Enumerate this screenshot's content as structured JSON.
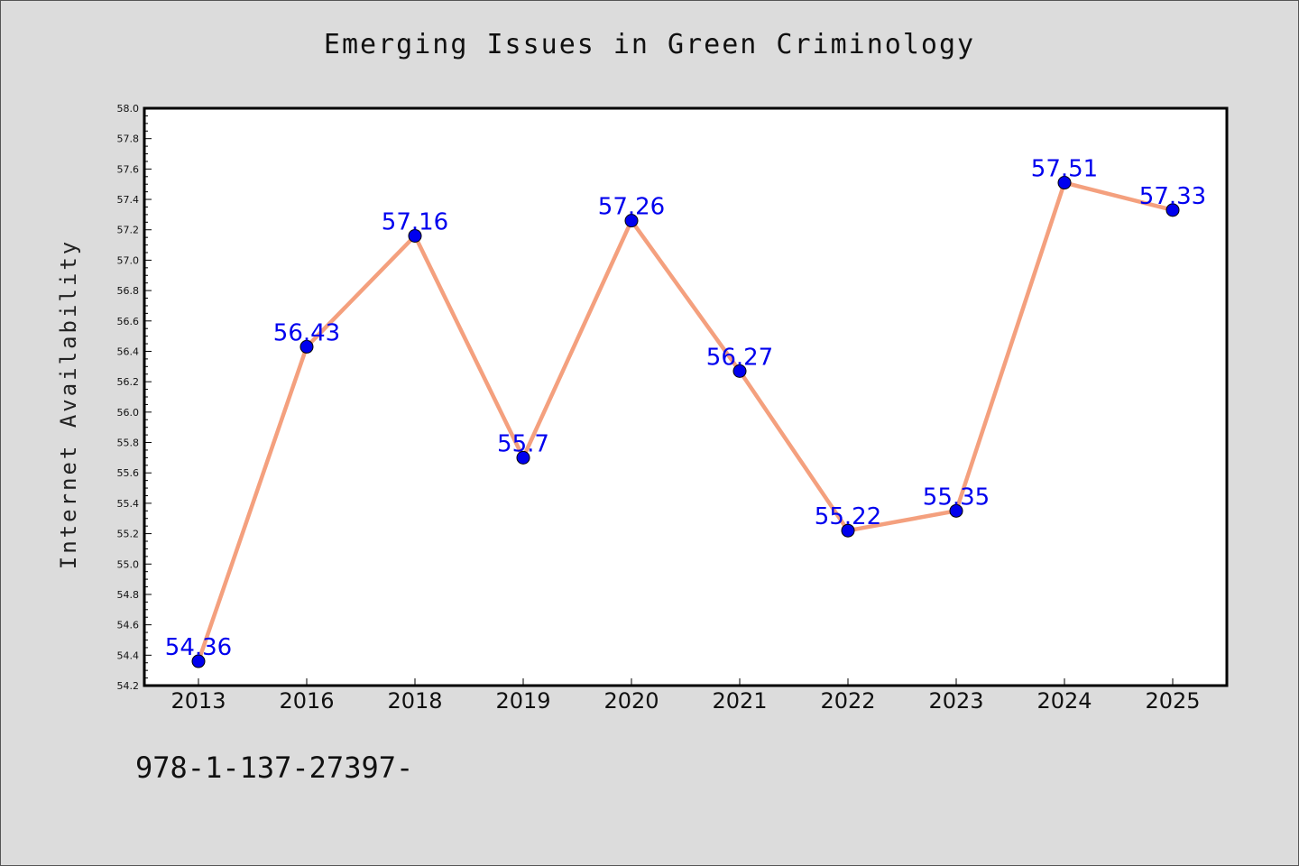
{
  "chart_data": {
    "type": "line",
    "title": "Emerging Issues in Green Criminology",
    "xlabel": "",
    "ylabel": "Internet Availability",
    "categories": [
      "2013",
      "2016",
      "2018",
      "2019",
      "2020",
      "2021",
      "2022",
      "2023",
      "2024",
      "2025"
    ],
    "values": [
      54.36,
      56.43,
      57.16,
      55.7,
      57.26,
      56.27,
      55.22,
      55.35,
      57.51,
      57.33
    ],
    "data_labels": [
      "54.36",
      "56.43",
      "57.16",
      "55.7",
      "57.26",
      "56.27",
      "55.22",
      "55.35",
      "57.51",
      "57.33"
    ],
    "ylim": [
      54.2,
      58.0
    ],
    "y_ticks": [
      "54.2",
      "54.4",
      "54.6",
      "54.8",
      "55.0",
      "55.2",
      "55.4",
      "55.6",
      "55.8",
      "56.0",
      "56.2",
      "56.4",
      "56.6",
      "56.8",
      "57.0",
      "57.2",
      "57.4",
      "57.6",
      "57.8",
      "58.0"
    ],
    "grid": false,
    "legend": "none",
    "colors": {
      "line": "#f4a07e",
      "marker": "#0000ee",
      "marker_edge": "#000000",
      "label": "#0000ee",
      "plot_background": "#ffffff",
      "figure_background": "#dcdcdc"
    }
  },
  "footer": {
    "code": "978-1-137-27397-"
  }
}
